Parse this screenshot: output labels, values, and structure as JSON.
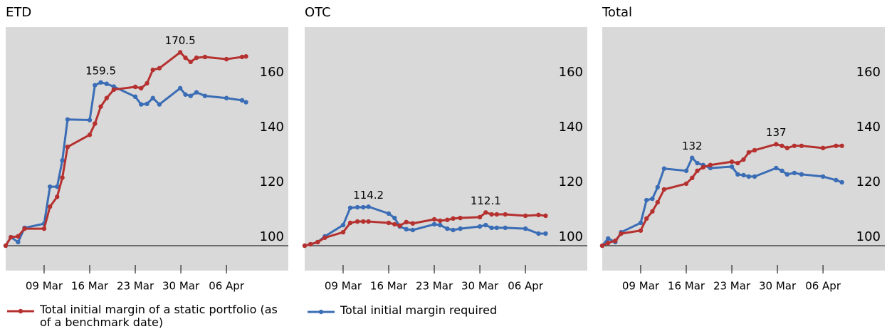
{
  "chart_data": [
    {
      "type": "line",
      "title": "ETD",
      "x": [
        3.1,
        3.9,
        5.0,
        6.0,
        9,
        9.9,
        11.0,
        11.8,
        12.6,
        16,
        16.8,
        17.7,
        18.6,
        19.7,
        23,
        23.9,
        24.8,
        25.7,
        26.7,
        29.9,
        30.7,
        31.5,
        32.4,
        33.7,
        37,
        39.4,
        40
      ],
      "series": [
        {
          "name": "Total initial margin required",
          "color": "#3a6db5",
          "values": [
            100,
            103.1,
            101.3,
            106.5,
            108,
            121.5,
            121.5,
            131.1,
            146,
            145.8,
            158.5,
            159.5,
            159,
            158,
            154.3,
            151.5,
            151.7,
            153.8,
            151.5,
            157.4,
            155.1,
            154.6,
            155.9,
            154.6,
            153.8,
            153,
            152.3
          ],
          "value_labels": [
            null,
            null,
            null,
            null,
            null,
            null,
            null,
            null,
            null,
            null,
            null,
            "159.5",
            null,
            null,
            null,
            null,
            null,
            null,
            null,
            null,
            null,
            null,
            null,
            null,
            null,
            null,
            null
          ]
        },
        {
          "name": "Total initial margin of a static portfolio (as of a benchmark date)",
          "color": "#b5312f",
          "values": [
            100,
            103.1,
            103.4,
            106.2,
            106.2,
            114.2,
            117.8,
            124.8,
            136,
            140.4,
            144.5,
            150.7,
            153.8,
            156.9,
            157.9,
            157.4,
            159.2,
            164.1,
            164.7,
            170.5,
            168.5,
            167,
            168.5,
            168.8,
            168,
            168.8,
            169
          ],
          "value_labels": [
            null,
            null,
            null,
            null,
            null,
            null,
            null,
            null,
            null,
            null,
            null,
            null,
            null,
            null,
            null,
            null,
            null,
            null,
            null,
            "170.5",
            null,
            null,
            null,
            null,
            null,
            null,
            null
          ]
        }
      ],
      "xlim": [
        3.1,
        46.5
      ],
      "xticks": [
        {
          "value": 9,
          "label": "09 Mar"
        },
        {
          "value": 16,
          "label": "16 Mar"
        },
        {
          "value": 23,
          "label": "23 Mar"
        },
        {
          "value": 30,
          "label": "30 Mar"
        },
        {
          "value": 37,
          "label": "06 Apr"
        }
      ],
      "ylim": [
        90.9,
        179.7
      ],
      "yticks": [
        100,
        120,
        140,
        160
      ],
      "baseline": 100
    },
    {
      "type": "line",
      "title": "OTC",
      "x": [
        3.1,
        4,
        5.1,
        6.2,
        9,
        10.1,
        11.2,
        12.1,
        12.9,
        16,
        16.9,
        17.7,
        18.7,
        19.7,
        23,
        23.9,
        25,
        25.9,
        27,
        30,
        30.9,
        31.8,
        32.6,
        33.9,
        37,
        39,
        40.1
      ],
      "series": [
        {
          "color": "#3a6db5",
          "values": [
            100,
            100.5,
            101.3,
            103.4,
            107.5,
            113.8,
            114,
            114,
            114.2,
            111.7,
            110.1,
            107,
            106,
            105.7,
            107.8,
            107.5,
            106.2,
            105.7,
            106.2,
            107,
            107.5,
            106.5,
            106.5,
            106.5,
            106.2,
            104.4,
            104.4
          ],
          "value_labels": [
            null,
            null,
            null,
            null,
            null,
            null,
            null,
            null,
            "114.2",
            null,
            null,
            null,
            null,
            null,
            null,
            null,
            null,
            null,
            null,
            null,
            null,
            null,
            null,
            null,
            null,
            null,
            null
          ]
        },
        {
          "color": "#b5312f",
          "values": [
            100,
            100.5,
            101.3,
            102.9,
            104.9,
            108.3,
            108.8,
            108.8,
            108.8,
            108.3,
            107.8,
            107.3,
            108.6,
            108.1,
            109.6,
            109.1,
            109.4,
            109.9,
            110.1,
            110.4,
            112.1,
            111.4,
            111.4,
            111.4,
            110.9,
            111.2,
            110.9
          ],
          "value_labels": [
            null,
            null,
            null,
            null,
            null,
            null,
            null,
            null,
            null,
            null,
            null,
            null,
            null,
            null,
            null,
            null,
            null,
            null,
            null,
            null,
            "112.1",
            null,
            null,
            null,
            null,
            null,
            null
          ]
        }
      ],
      "xlim": [
        3.1,
        46.5
      ],
      "xticks": [
        {
          "value": 9,
          "label": "09 Mar"
        },
        {
          "value": 16,
          "label": "16 Mar"
        },
        {
          "value": 23,
          "label": "23 Mar"
        },
        {
          "value": 30,
          "label": "30 Mar"
        },
        {
          "value": 37,
          "label": "06 Apr"
        }
      ],
      "ylim": [
        90.9,
        179.7
      ],
      "yticks": [
        100,
        120,
        140,
        160
      ],
      "baseline": 100
    },
    {
      "type": "line",
      "title": "Total",
      "x": [
        3.1,
        4,
        5.1,
        6,
        9,
        9.9,
        10.8,
        11.6,
        12.6,
        16,
        16.9,
        17.7,
        18.6,
        19.7,
        23,
        23.9,
        24.8,
        25.6,
        26.5,
        29.8,
        30.7,
        31.5,
        32.6,
        33.7,
        37,
        39,
        39.9
      ],
      "series": [
        {
          "color": "#3a6db5",
          "values": [
            100,
            102.6,
            101.3,
            104.9,
            108.3,
            116.6,
            117.1,
            121.3,
            128.1,
            127.3,
            132,
            130.1,
            129.4,
            128.3,
            128.8,
            126,
            125.7,
            125.2,
            125.2,
            128.3,
            127.3,
            126,
            126.5,
            126,
            125.2,
            123.9,
            123.1
          ],
          "value_labels": [
            null,
            null,
            null,
            null,
            null,
            null,
            null,
            null,
            null,
            null,
            "132",
            null,
            null,
            null,
            null,
            null,
            null,
            null,
            null,
            null,
            null,
            null,
            null,
            null,
            null,
            null,
            null
          ]
        },
        {
          "color": "#b5312f",
          "values": [
            100,
            101,
            101.8,
            104.4,
            105.5,
            109.9,
            112.5,
            115.8,
            120.5,
            122.6,
            124.7,
            127.3,
            128.6,
            129.4,
            130.6,
            130.1,
            131.4,
            134,
            134.8,
            137,
            136.4,
            135.6,
            136.4,
            136.4,
            135.6,
            136.4,
            136.4
          ],
          "value_labels": [
            null,
            null,
            null,
            null,
            null,
            null,
            null,
            null,
            null,
            null,
            null,
            null,
            null,
            null,
            null,
            null,
            null,
            null,
            null,
            "137",
            null,
            null,
            null,
            null,
            null,
            null,
            null
          ]
        }
      ],
      "xlim": [
        3.1,
        46.5
      ],
      "xticks": [
        {
          "value": 9,
          "label": "09 Mar"
        },
        {
          "value": 16,
          "label": "16 Mar"
        },
        {
          "value": 23,
          "label": "23 Mar"
        },
        {
          "value": 30,
          "label": "30 Mar"
        },
        {
          "value": 37,
          "label": "06 Apr"
        }
      ],
      "ylim": [
        90.9,
        179.7
      ],
      "yticks": [
        100,
        120,
        140,
        160
      ],
      "baseline": 100
    }
  ]
}
